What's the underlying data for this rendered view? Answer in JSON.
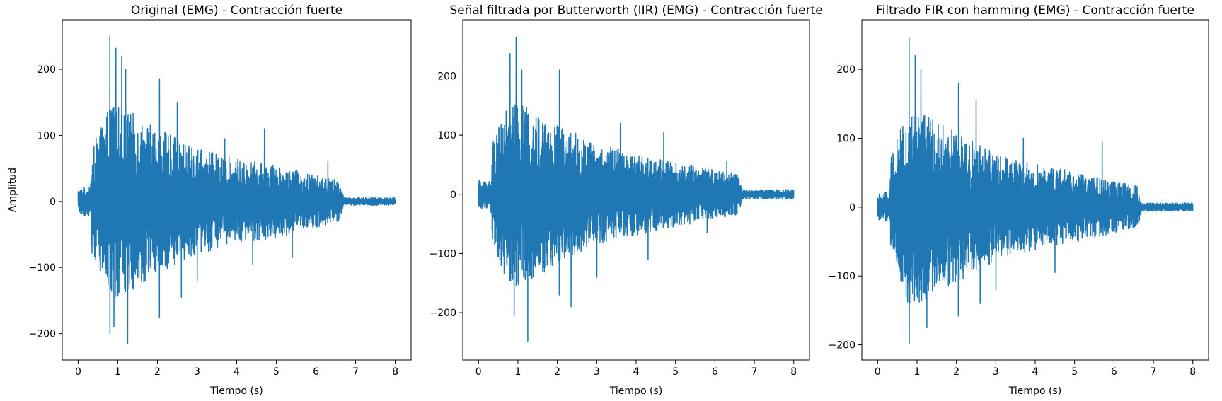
{
  "chart_data": [
    {
      "type": "line",
      "title": "Original (EMG) - Contracción fuerte",
      "xlabel": "Tiempo (s)",
      "ylabel": "Amplitud",
      "xlim": [
        -0.4,
        8.4
      ],
      "ylim": [
        -240,
        275
      ],
      "xticks": [
        0,
        1,
        2,
        3,
        4,
        5,
        6,
        7,
        8
      ],
      "xtick_labels": [
        "0",
        "1",
        "2",
        "3",
        "4",
        "5",
        "6",
        "7",
        "8"
      ],
      "yticks": [
        -200,
        -100,
        0,
        100,
        200
      ],
      "ytick_labels": [
        "−200",
        "−100",
        "0",
        "100",
        "200"
      ],
      "color": "#1f77b4",
      "grid": false,
      "signal": {
        "duration_s": 8,
        "envelope_s": [
          0,
          0.3,
          0.35,
          0.8,
          1.2,
          2.0,
          3.0,
          4.0,
          5.0,
          6.0,
          6.6,
          6.7,
          8.0
        ],
        "envelope_amp": [
          20,
          22,
          80,
          150,
          140,
          110,
          80,
          65,
          55,
          40,
          32,
          6,
          6
        ],
        "peaks": [
          {
            "x": 0.8,
            "y": 250
          },
          {
            "x": 0.95,
            "y": 232
          },
          {
            "x": 1.2,
            "y": 200
          },
          {
            "x": 1.1,
            "y": 220
          },
          {
            "x": 2.05,
            "y": 186
          },
          {
            "x": 2.5,
            "y": 150
          },
          {
            "x": 3.7,
            "y": 95
          },
          {
            "x": 4.7,
            "y": 110
          },
          {
            "x": 6.3,
            "y": 60
          },
          {
            "x": 0.8,
            "y": -200
          },
          {
            "x": 0.9,
            "y": -190
          },
          {
            "x": 1.25,
            "y": -215
          },
          {
            "x": 2.05,
            "y": -175
          },
          {
            "x": 2.6,
            "y": -145
          },
          {
            "x": 3.0,
            "y": -120
          },
          {
            "x": 4.4,
            "y": -95
          },
          {
            "x": 5.4,
            "y": -85
          }
        ]
      }
    },
    {
      "type": "line",
      "title": "Señal filtrada por Butterworth (IIR) (EMG) - Contracción fuerte",
      "xlabel": "Tiempo (s)",
      "ylabel": "",
      "xlim": [
        -0.4,
        8.4
      ],
      "ylim": [
        -280,
        295
      ],
      "xticks": [
        0,
        1,
        2,
        3,
        4,
        5,
        6,
        7,
        8
      ],
      "xtick_labels": [
        "0",
        "1",
        "2",
        "3",
        "4",
        "5",
        "6",
        "7",
        "8"
      ],
      "yticks": [
        -200,
        -100,
        0,
        100,
        200
      ],
      "ytick_labels": [
        "−200",
        "−100",
        "0",
        "100",
        "200"
      ],
      "color": "#1f77b4",
      "grid": false,
      "signal": {
        "duration_s": 8,
        "envelope_s": [
          0,
          0.3,
          0.35,
          0.8,
          1.2,
          2.0,
          3.0,
          4.0,
          5.0,
          6.0,
          6.6,
          6.7,
          8.0
        ],
        "envelope_amp": [
          24,
          26,
          85,
          160,
          150,
          120,
          85,
          70,
          55,
          42,
          34,
          8,
          8
        ],
        "peaks": [
          {
            "x": 0.95,
            "y": 265
          },
          {
            "x": 0.8,
            "y": 238
          },
          {
            "x": 1.1,
            "y": 210
          },
          {
            "x": 2.05,
            "y": 210
          },
          {
            "x": 3.6,
            "y": 120
          },
          {
            "x": 4.7,
            "y": 105
          },
          {
            "x": 6.3,
            "y": 55
          },
          {
            "x": 1.25,
            "y": -248
          },
          {
            "x": 0.9,
            "y": -205
          },
          {
            "x": 2.35,
            "y": -190
          },
          {
            "x": 2.05,
            "y": -170
          },
          {
            "x": 3.0,
            "y": -140
          },
          {
            "x": 4.3,
            "y": -110
          },
          {
            "x": 5.8,
            "y": -65
          }
        ]
      }
    },
    {
      "type": "line",
      "title": "Filtrado FIR con hamming (EMG) - Contracción fuerte",
      "xlabel": "Tiempo (s)",
      "ylabel": "",
      "xlim": [
        -0.4,
        8.4
      ],
      "ylim": [
        -222,
        272
      ],
      "xticks": [
        0,
        1,
        2,
        3,
        4,
        5,
        6,
        7,
        8
      ],
      "xtick_labels": [
        "0",
        "1",
        "2",
        "3",
        "4",
        "5",
        "6",
        "7",
        "8"
      ],
      "yticks": [
        -200,
        -100,
        0,
        100,
        200
      ],
      "ytick_labels": [
        "−200",
        "−100",
        "0",
        "100",
        "200"
      ],
      "color": "#1f77b4",
      "grid": false,
      "signal": {
        "duration_s": 8,
        "envelope_s": [
          0,
          0.3,
          0.35,
          0.8,
          1.2,
          2.0,
          3.0,
          4.0,
          5.0,
          6.0,
          6.6,
          6.7,
          8.0
        ],
        "envelope_amp": [
          20,
          22,
          78,
          145,
          135,
          110,
          78,
          62,
          52,
          38,
          30,
          6,
          6
        ],
        "peaks": [
          {
            "x": 0.8,
            "y": 245
          },
          {
            "x": 0.95,
            "y": 220
          },
          {
            "x": 1.1,
            "y": 200
          },
          {
            "x": 2.05,
            "y": 180
          },
          {
            "x": 2.5,
            "y": 155
          },
          {
            "x": 3.7,
            "y": 100
          },
          {
            "x": 5.7,
            "y": 95
          },
          {
            "x": 0.8,
            "y": -198
          },
          {
            "x": 1.25,
            "y": -175
          },
          {
            "x": 2.05,
            "y": -158
          },
          {
            "x": 2.6,
            "y": -140
          },
          {
            "x": 3.0,
            "y": -120
          },
          {
            "x": 4.5,
            "y": -95
          }
        ]
      }
    }
  ]
}
